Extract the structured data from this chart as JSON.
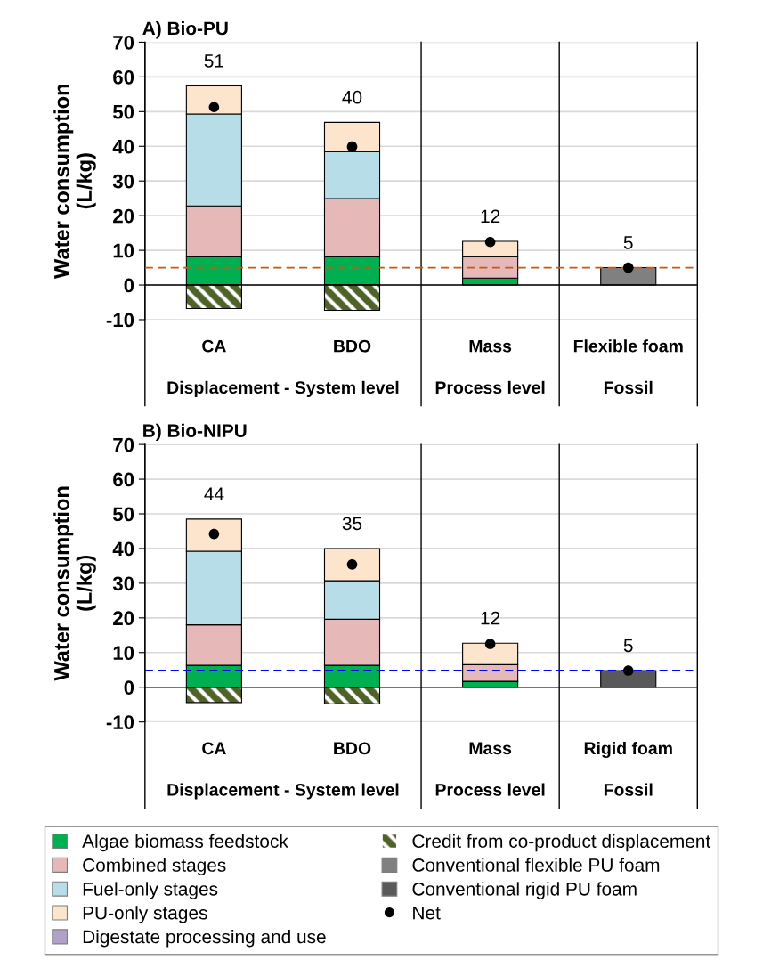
{
  "chart_data": [
    {
      "type": "bar",
      "stacked": true,
      "title": "A) Bio-PU",
      "ylabel": "Water consumption\n(L/kg)",
      "categories": [
        "CA",
        "BDO",
        "Mass",
        "Flexible foam"
      ],
      "annotations": [
        "Displacement - System level",
        "Process level",
        "Fossil"
      ],
      "ylim": [
        -10,
        70
      ],
      "yticks": [
        -10,
        0,
        10,
        20,
        30,
        40,
        50,
        60,
        70
      ],
      "grid": "y",
      "legend": "bottom",
      "series": [
        {
          "name": "Algae biomass feedstock",
          "color": "#00b050",
          "values": [
            8.2,
            8.2,
            2.0,
            null
          ]
        },
        {
          "name": "Combined stages",
          "color": "#e6b9b8",
          "values": [
            14.6,
            16.7,
            6.2,
            null
          ]
        },
        {
          "name": "Fuel-only stages",
          "color": "#b7dee8",
          "values": [
            26.5,
            13.6,
            null,
            null
          ]
        },
        {
          "name": "PU-only stages",
          "color": "#fde4cc",
          "values": [
            8.1,
            8.4,
            4.4,
            null
          ]
        },
        {
          "name": "Credit from co-product displacement",
          "color": "#4f6228",
          "values": [
            -6.8,
            -7.3,
            null,
            null
          ]
        },
        {
          "name": "Conventional flexible PU foam",
          "color": "#808080",
          "values": [
            null,
            null,
            null,
            5.0
          ]
        },
        {
          "name": "Net",
          "type": "scatter",
          "color": "#000000",
          "marker": "circle",
          "values": [
            51.3,
            39.9,
            12.4,
            5.0
          ],
          "value_labels": [
            "51",
            "40",
            "12",
            "5"
          ]
        }
      ],
      "ref_lines": [
        {
          "axis": "y",
          "value": 5.0,
          "color": "#c55a11",
          "line_style": "dashed"
        }
      ]
    },
    {
      "type": "bar",
      "stacked": true,
      "title": "B) Bio-NIPU",
      "ylabel": "Water consumption\n(L/kg)",
      "categories": [
        "CA",
        "BDO",
        "Mass",
        "Rigid foam"
      ],
      "annotations": [
        "Displacement - System level",
        "Process level",
        "Fossil"
      ],
      "ylim": [
        -10,
        70
      ],
      "yticks": [
        -10,
        0,
        10,
        20,
        30,
        40,
        50,
        60,
        70
      ],
      "grid": "y",
      "legend": "bottom",
      "series": [
        {
          "name": "Algae biomass feedstock",
          "color": "#00b050",
          "values": [
            6.3,
            6.3,
            1.7,
            null
          ]
        },
        {
          "name": "Combined stages",
          "color": "#e6b9b8",
          "values": [
            11.7,
            13.3,
            4.8,
            null
          ]
        },
        {
          "name": "Fuel-only stages",
          "color": "#b7dee8",
          "values": [
            21.2,
            11.1,
            null,
            null
          ]
        },
        {
          "name": "PU-only stages",
          "color": "#fde4cc",
          "values": [
            9.3,
            9.3,
            6.2,
            null
          ]
        },
        {
          "name": "Digestate processing and use",
          "color": "#b1a0c7",
          "values": [
            null,
            null,
            null,
            null
          ]
        },
        {
          "name": "Credit from co-product displacement",
          "color": "#4f6228",
          "values": [
            -4.4,
            -4.8,
            null,
            null
          ]
        },
        {
          "name": "Conventional rigid PU foam",
          "color": "#595959",
          "values": [
            null,
            null,
            null,
            4.8
          ]
        },
        {
          "name": "Net",
          "type": "scatter",
          "color": "#000000",
          "marker": "circle",
          "values": [
            44.2,
            35.4,
            12.5,
            4.8
          ],
          "value_labels": [
            "44",
            "35",
            "12",
            "5"
          ]
        }
      ],
      "ref_lines": [
        {
          "axis": "y",
          "value": 4.8,
          "color": "#0000ff",
          "line_style": "dashed"
        }
      ]
    }
  ]
}
